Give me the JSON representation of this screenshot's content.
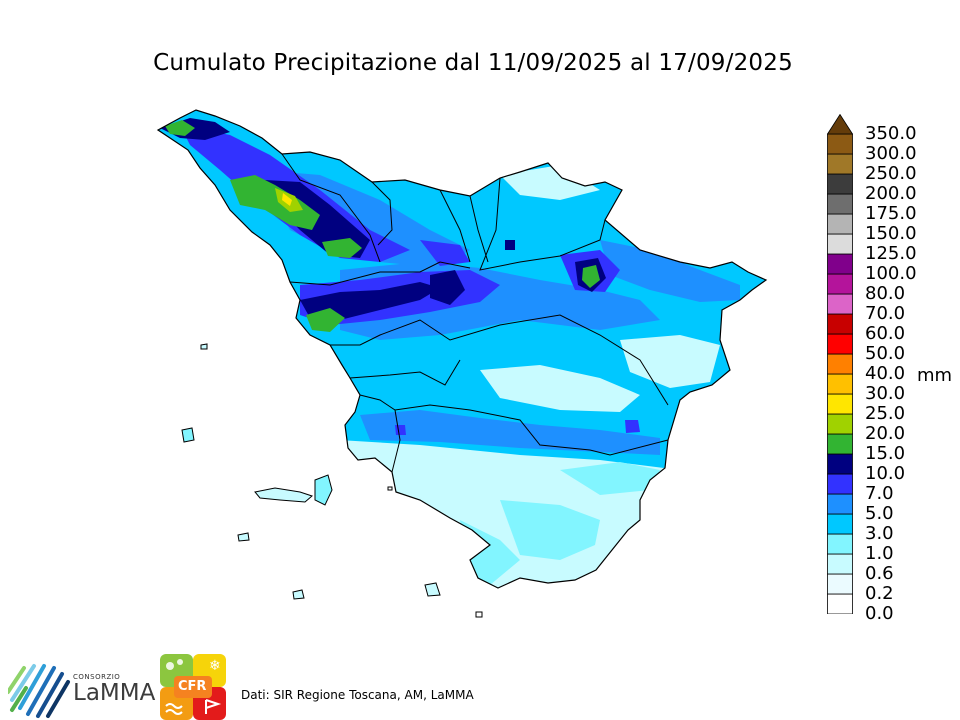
{
  "title": "Cumulato Precipitazione dal 11/09/2025 al 17/09/2025",
  "legend": {
    "unit": "mm",
    "extend_top_arrow": true,
    "bins": [
      {
        "label": "0.0",
        "color": "#ffffff"
      },
      {
        "label": "0.2",
        "color": "#ebfbff"
      },
      {
        "label": "0.6",
        "color": "#c8fbff"
      },
      {
        "label": "1.0",
        "color": "#82f5ff"
      },
      {
        "label": "3.0",
        "color": "#00c8ff"
      },
      {
        "label": "5.0",
        "color": "#1e90ff"
      },
      {
        "label": "7.0",
        "color": "#3232ff"
      },
      {
        "label": "10.0",
        "color": "#000080"
      },
      {
        "label": "15.0",
        "color": "#32b432"
      },
      {
        "label": "20.0",
        "color": "#a0d200"
      },
      {
        "label": "25.0",
        "color": "#ffe600"
      },
      {
        "label": "30.0",
        "color": "#ffc000"
      },
      {
        "label": "40.0",
        "color": "#ff8000"
      },
      {
        "label": "50.0",
        "color": "#ff0000"
      },
      {
        "label": "60.0",
        "color": "#c80000"
      },
      {
        "label": "70.0",
        "color": "#dc64c8"
      },
      {
        "label": "80.0",
        "color": "#b4149b"
      },
      {
        "label": "100.0",
        "color": "#80008b"
      },
      {
        "label": "125.0",
        "color": "#dcdcdc"
      },
      {
        "label": "150.0",
        "color": "#b4b4b4"
      },
      {
        "label": "175.0",
        "color": "#6e6e6e"
      },
      {
        "label": "200.0",
        "color": "#3c3c3c"
      },
      {
        "label": "250.0",
        "color": "#a07828"
      },
      {
        "label": "300.0",
        "color": "#8c5a14"
      },
      {
        "label": "350.0",
        "color": "#643c0a"
      }
    ]
  },
  "logos": {
    "lamma_consorzio": "CONSORZIO",
    "lamma_name": "LaMMA",
    "cfr": "CFR"
  },
  "credits": "Dati: SIR Regione Toscana, AM, LaMMA"
}
